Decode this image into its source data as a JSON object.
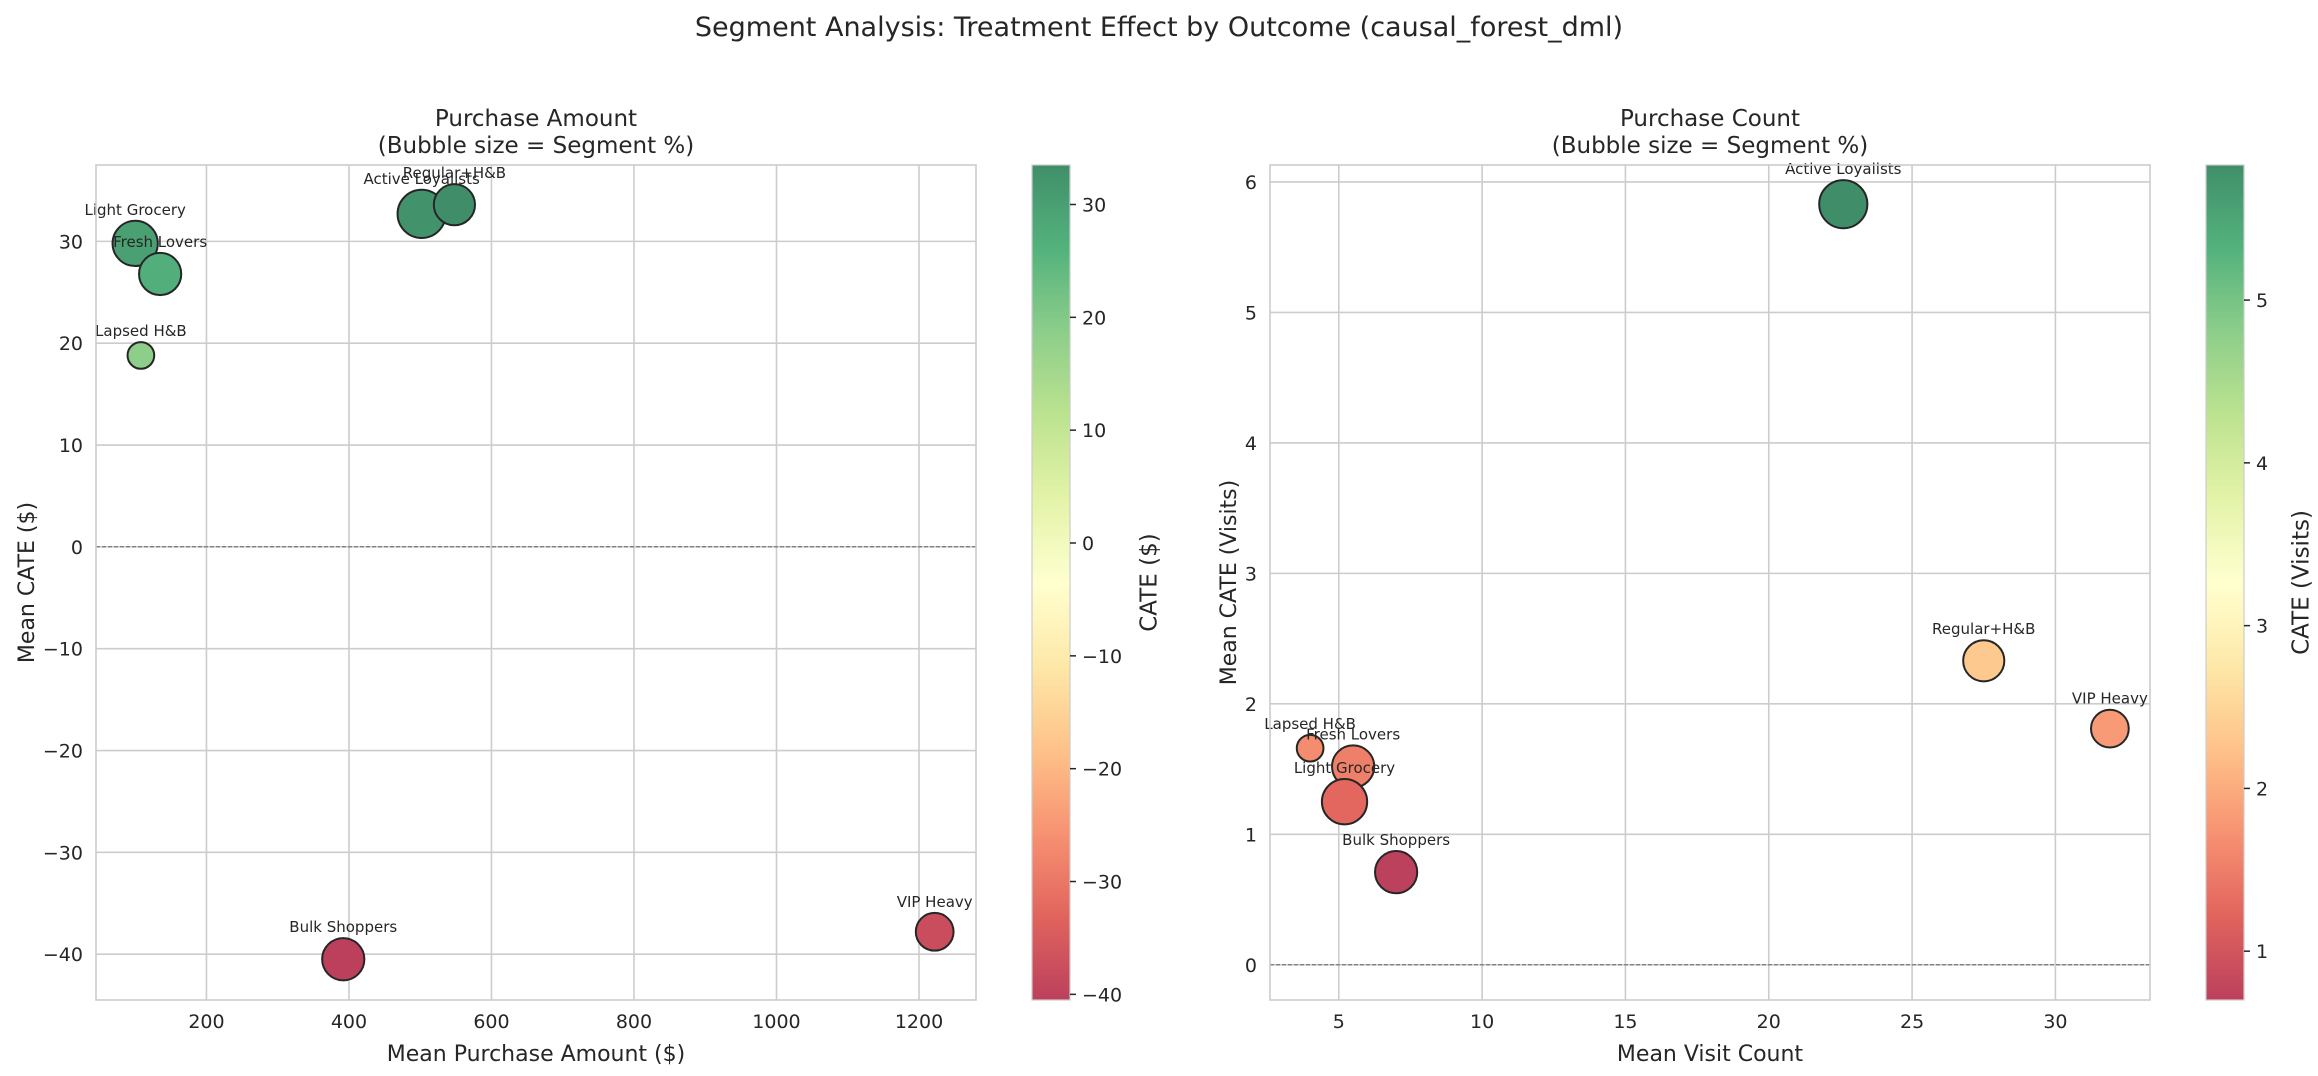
{
  "figure": {
    "suptitle": "Segment Analysis: Treatment Effect by Outcome (causal_forest_dml)"
  },
  "colormap": {
    "name": "RdYlGn",
    "alpha": 0.75,
    "stops": [
      "#a50026",
      "#d73027",
      "#f46d43",
      "#fdae61",
      "#fee08b",
      "#ffffbf",
      "#d9ef8b",
      "#a6d96a",
      "#66bd63",
      "#1a9850",
      "#006837"
    ]
  },
  "chart_data": [
    {
      "type": "scatter",
      "variant": "bubble",
      "title_line1": "Purchase Amount",
      "title_line2": "(Bubble size = Segment %)",
      "xlabel": "Mean Purchase Amount ($)",
      "ylabel": "Mean CATE ($)",
      "colorbar_label": "CATE ($)",
      "xlim": [
        45,
        1280
      ],
      "ylim": [
        -44.5,
        37.5
      ],
      "xticks": [
        200,
        400,
        600,
        800,
        1000,
        1200
      ],
      "yticks": [
        -40,
        -30,
        -20,
        -10,
        0,
        10,
        20,
        30
      ],
      "color_range": [
        -40.5,
        33.5
      ],
      "colorbar_ticks": [
        -40,
        -30,
        -20,
        -10,
        0,
        10,
        20,
        30
      ],
      "grid": true,
      "zero_line": true,
      "points": [
        {
          "label": "Light Grocery",
          "x": 100,
          "y": 29.8,
          "size": 2.3
        },
        {
          "label": "Fresh Lovers",
          "x": 135,
          "y": 26.8,
          "size": 2.0
        },
        {
          "label": "Lapsed H&B",
          "x": 108,
          "y": 18.8,
          "size": 0.8
        },
        {
          "label": "Active Loyalists",
          "x": 502,
          "y": 32.7,
          "size": 2.6
        },
        {
          "label": "Regular+H&B",
          "x": 548,
          "y": 33.6,
          "size": 1.9
        },
        {
          "label": "Bulk Shoppers",
          "x": 392,
          "y": -40.5,
          "size": 2.0
        },
        {
          "label": "VIP Heavy",
          "x": 1222,
          "y": -37.8,
          "size": 1.6
        }
      ]
    },
    {
      "type": "scatter",
      "variant": "bubble",
      "title_line1": "Purchase Count",
      "title_line2": "(Bubble size = Segment %)",
      "xlabel": "Mean Visit Count",
      "ylabel": "Mean CATE (Visits)",
      "colorbar_label": "CATE (Visits)",
      "xlim": [
        2.6,
        33.3
      ],
      "ylim": [
        -0.27,
        6.13
      ],
      "xticks": [
        5,
        10,
        15,
        20,
        25,
        30
      ],
      "yticks": [
        0,
        1,
        2,
        3,
        4,
        5,
        6
      ],
      "color_range": [
        0.7,
        5.83
      ],
      "colorbar_ticks": [
        1,
        2,
        3,
        4,
        5
      ],
      "grid": true,
      "zero_line": true,
      "points": [
        {
          "label": "Active Loyalists",
          "x": 22.6,
          "y": 5.83,
          "size": 2.6
        },
        {
          "label": "Regular+H&B",
          "x": 27.5,
          "y": 2.33,
          "size": 1.9
        },
        {
          "label": "VIP Heavy",
          "x": 31.9,
          "y": 1.81,
          "size": 1.6
        },
        {
          "label": "Lapsed H&B",
          "x": 4.0,
          "y": 1.66,
          "size": 0.8
        },
        {
          "label": "Fresh Lovers",
          "x": 5.5,
          "y": 1.52,
          "size": 2.0
        },
        {
          "label": "Light Grocery",
          "x": 5.2,
          "y": 1.25,
          "size": 2.3
        },
        {
          "label": "Bulk Shoppers",
          "x": 7.0,
          "y": 0.71,
          "size": 2.0
        }
      ]
    }
  ]
}
